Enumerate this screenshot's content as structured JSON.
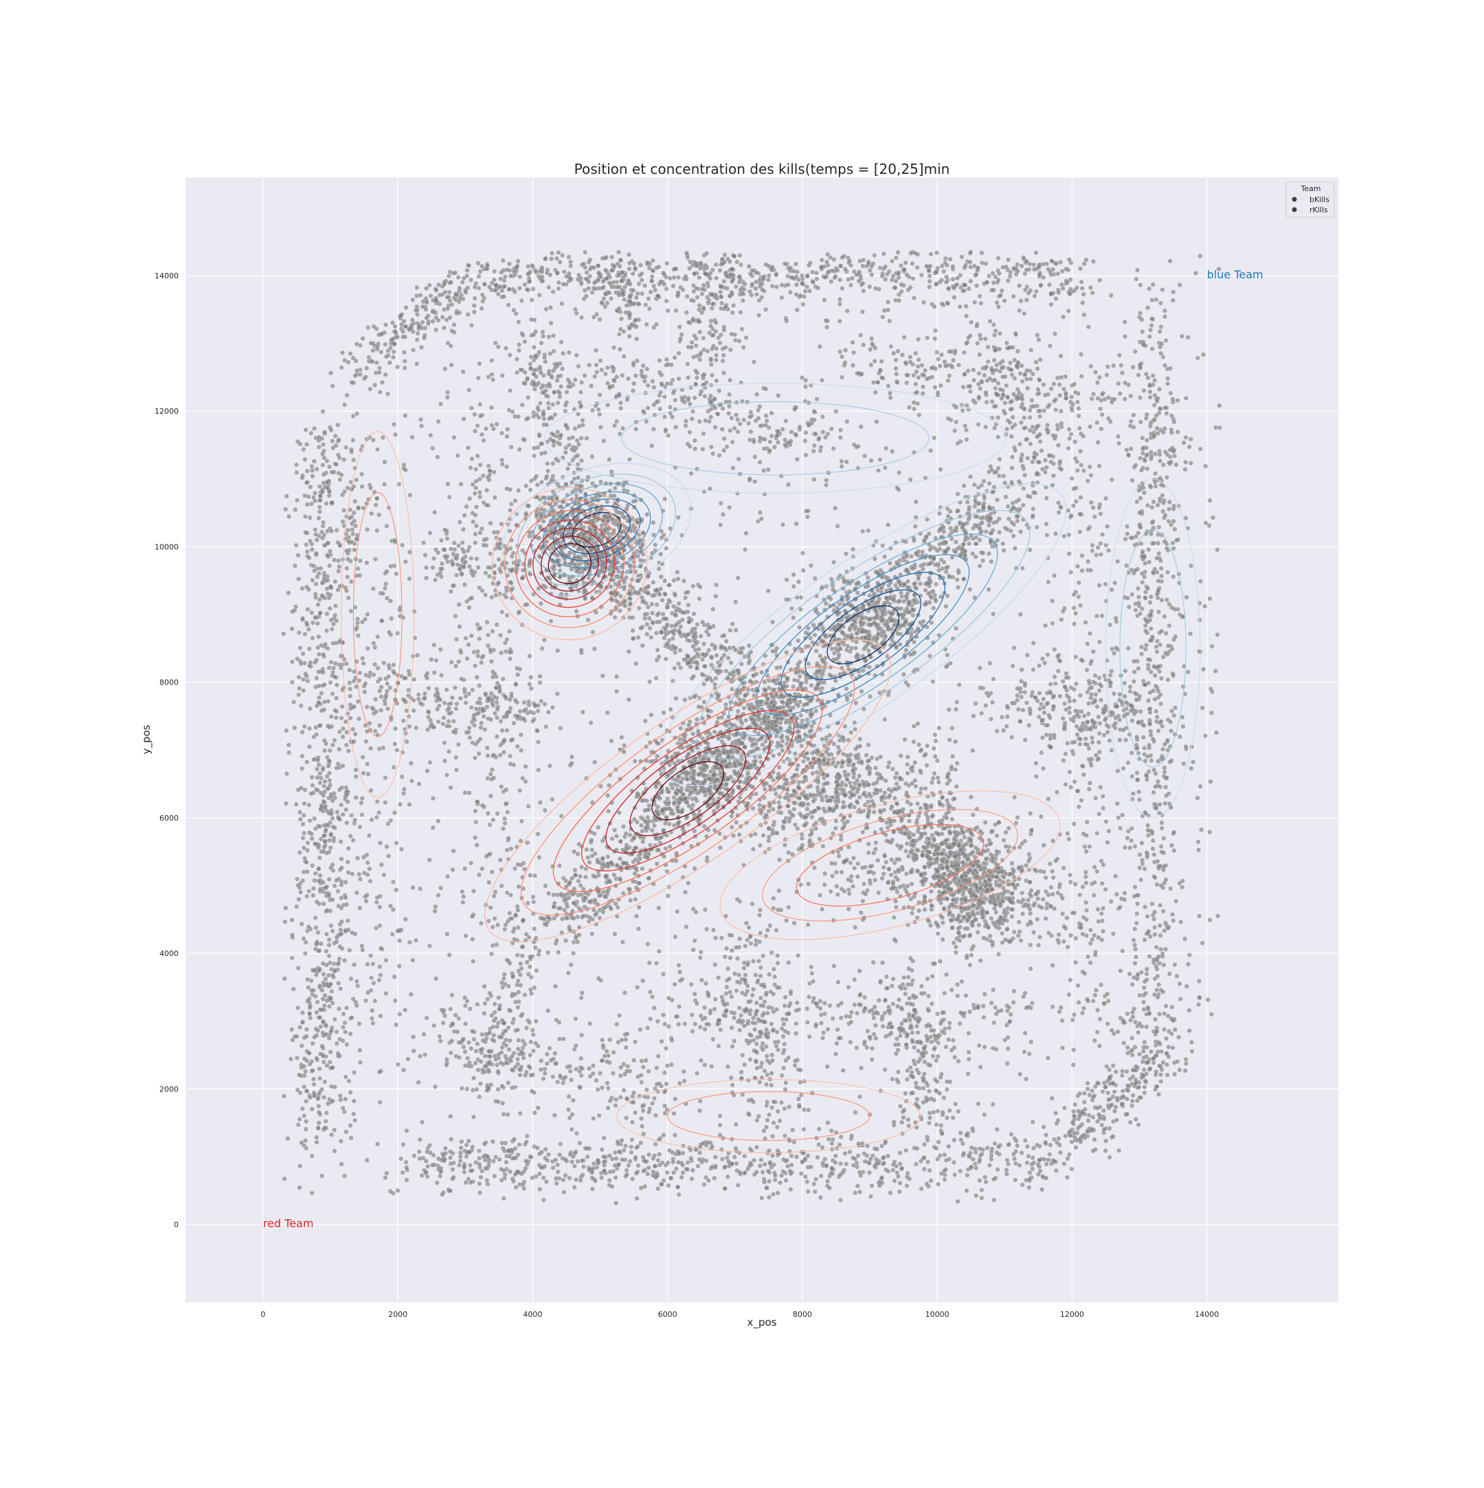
{
  "chart_data": {
    "type": "scatter",
    "title": "Position et concentration des kills(temps = [20,25]min",
    "xlabel": "x_pos",
    "ylabel": "y_pos",
    "xlim": [
      -1150,
      15950
    ],
    "ylim": [
      -1150,
      15450
    ],
    "xticks": [
      0,
      2000,
      4000,
      6000,
      8000,
      10000,
      12000,
      14000
    ],
    "yticks": [
      0,
      2000,
      4000,
      6000,
      8000,
      10000,
      12000,
      14000
    ],
    "xtick_labels": [
      "0",
      "2000",
      "4000",
      "6000",
      "8000",
      "10000",
      "12000",
      "14000"
    ],
    "ytick_labels": [
      "0",
      "2000",
      "4000",
      "6000",
      "8000",
      "10000",
      "12000",
      "14000"
    ],
    "grid": true,
    "legend": {
      "placement": "top-right",
      "title": "Team",
      "entries": [
        "bKills",
        "rKills"
      ]
    },
    "annotations": [
      {
        "text": "red Team",
        "x": 0,
        "y": 0,
        "color": "#d62728"
      },
      {
        "text": "blue Team",
        "x": 14000,
        "y": 14000,
        "color": "#1f77b4"
      }
    ],
    "point_color": "#7a7a7a",
    "series": [
      {
        "name": "bKills",
        "distribution": "kill positions along lanes, river and jungle paths; densest along the diagonal from (5000,10200) to (10000,8500)"
      },
      {
        "name": "rKills",
        "distribution": "kill positions along lanes, river and jungle paths; densest along the diagonal from (4500,9800) to (6500,6500)"
      }
    ],
    "density_contours": [
      {
        "team": "blue",
        "colormap": "Blues",
        "peaks": [
          [
            4950,
            10200
          ],
          [
            8700,
            8700
          ]
        ]
      },
      {
        "team": "red",
        "colormap": "Reds",
        "peaks": [
          [
            4550,
            9750
          ],
          [
            6400,
            6600
          ]
        ]
      }
    ]
  }
}
